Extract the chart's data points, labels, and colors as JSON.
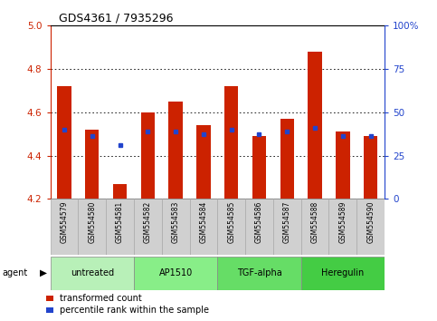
{
  "title": "GDS4361 / 7935296",
  "samples": [
    "GSM554579",
    "GSM554580",
    "GSM554581",
    "GSM554582",
    "GSM554583",
    "GSM554584",
    "GSM554585",
    "GSM554586",
    "GSM554587",
    "GSM554588",
    "GSM554589",
    "GSM554590"
  ],
  "red_values": [
    4.72,
    4.52,
    4.27,
    4.6,
    4.65,
    4.54,
    4.72,
    4.49,
    4.57,
    4.88,
    4.51,
    4.49
  ],
  "blue_values": [
    4.52,
    4.49,
    4.45,
    4.51,
    4.51,
    4.5,
    4.52,
    4.5,
    4.51,
    4.53,
    4.49,
    4.49
  ],
  "ylim": [
    4.2,
    5.0
  ],
  "yticks": [
    4.2,
    4.4,
    4.6,
    4.8,
    5.0
  ],
  "y2ticks": [
    0,
    25,
    50,
    75,
    100
  ],
  "y2tick_labels": [
    "0",
    "25",
    "50",
    "75",
    "100%"
  ],
  "groups": [
    {
      "label": "untreated",
      "start": 0,
      "end": 3,
      "color": "#b8f0b8"
    },
    {
      "label": "AP1510",
      "start": 3,
      "end": 6,
      "color": "#88ee88"
    },
    {
      "label": "TGF-alpha",
      "start": 6,
      "end": 9,
      "color": "#66dd66"
    },
    {
      "label": "Heregulin",
      "start": 9,
      "end": 12,
      "color": "#44cc44"
    }
  ],
  "bar_width": 0.5,
  "base": 4.2,
  "red_color": "#cc2200",
  "blue_color": "#2244cc",
  "left_tick_color": "#cc2200",
  "right_tick_color": "#2244cc",
  "legend_red_label": "transformed count",
  "legend_blue_label": "percentile rank within the sample",
  "grid_dotted_color": "#000000",
  "sample_box_color": "#d0d0d0",
  "sample_box_edge": "#aaaaaa"
}
